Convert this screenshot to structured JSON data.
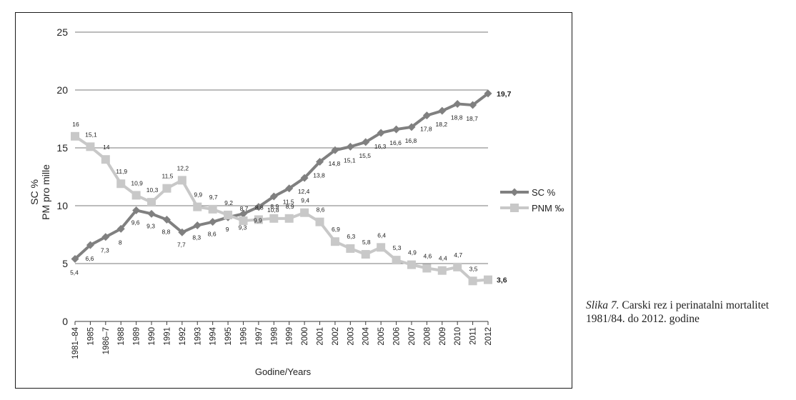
{
  "caption": {
    "figure_label": "Slika 7.",
    "text": "Carski rez i perinatalni mortalitet 1981/84. do 2012. godine"
  },
  "chart_data": {
    "type": "line",
    "title": "",
    "xlabel": "Godine/Years",
    "ylabel_lines": [
      "SC %",
      "PM pro mille"
    ],
    "ylim": [
      0,
      25
    ],
    "yticks": [
      0,
      5,
      10,
      15,
      20,
      25
    ],
    "grid": true,
    "legend_position": "right",
    "categories": [
      "1981–84",
      "1985",
      "1986–7",
      "1988",
      "1989",
      "1990",
      "1991",
      "1992",
      "1993",
      "1994",
      "1995",
      "1996",
      "1997",
      "1998",
      "1999",
      "2000",
      "2001",
      "2002",
      "2003",
      "2004",
      "2005",
      "2006",
      "2007",
      "2008",
      "2009",
      "2010",
      "2011",
      "2012"
    ],
    "series": [
      {
        "name": "SC %",
        "marker": "diamond",
        "color": "#808080",
        "values": [
          5.4,
          6.6,
          7.3,
          8,
          9.6,
          9.3,
          8.8,
          7.7,
          8.3,
          8.6,
          9,
          9.3,
          9.9,
          10.8,
          11.5,
          12.4,
          13.8,
          14.8,
          15.1,
          15.5,
          16.3,
          16.6,
          16.8,
          17.8,
          18.2,
          18.8,
          18.7,
          19.7
        ],
        "labels": [
          "5,4",
          "6,6",
          "7,3",
          "8",
          "9,6",
          "9,3",
          "8,8",
          "7,7",
          "8,3",
          "8,6",
          "9",
          "9,3",
          "9,9",
          "10,8",
          "11,5",
          "12,4",
          "13,8",
          "14,8",
          "15,1",
          "15,5",
          "16,3",
          "16,6",
          "16,8",
          "17,8",
          "18,2",
          "18,8",
          "18,7",
          "19,7"
        ]
      },
      {
        "name": "PNM ‰",
        "marker": "square",
        "color": "#c8c8c8",
        "values": [
          16,
          15.1,
          14,
          11.9,
          10.9,
          10.3,
          11.5,
          12.2,
          9.9,
          9.7,
          9.2,
          8.7,
          8.8,
          8.9,
          8.9,
          9.4,
          8.6,
          6.9,
          6.3,
          5.8,
          6.4,
          5.3,
          4.9,
          4.6,
          4.4,
          4.7,
          3.5,
          3.6
        ],
        "labels": [
          "16",
          "15,1",
          "14",
          "11,9",
          "10,9",
          "10,3",
          "11,5",
          "12,2",
          "9,9",
          "9,7",
          "9,2",
          "8,7",
          "8,8",
          "8,9",
          "8,9",
          "9,4",
          "8,6",
          "6,9",
          "6,3",
          "5,8",
          "6,4",
          "5,3",
          "4,9",
          "4,6",
          "4,4",
          "4,7",
          "3,5",
          "3,6"
        ]
      }
    ]
  }
}
